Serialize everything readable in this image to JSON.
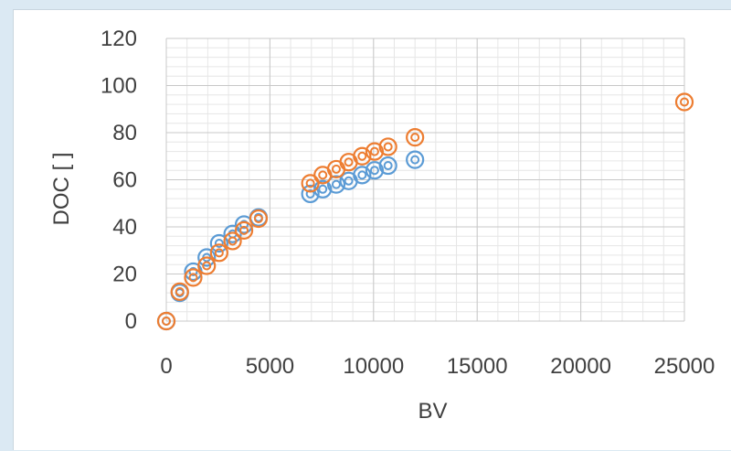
{
  "chart_data": {
    "type": "scatter",
    "xlabel": "BV",
    "ylabel": "DOC [ ]",
    "xlim": [
      0,
      25000
    ],
    "ylim": [
      0,
      120
    ],
    "x_ticks": [
      0,
      5000,
      10000,
      15000,
      20000,
      25000
    ],
    "y_ticks": [
      0,
      20,
      40,
      60,
      80,
      100,
      120
    ],
    "x_tick_labels": [
      "0",
      "5000",
      "10000",
      "15000",
      "20000",
      "25000"
    ],
    "y_tick_labels": [
      "0",
      "20",
      "40",
      "60",
      "80",
      "100",
      "120"
    ],
    "grid": true,
    "minor_grid": true,
    "legend": "none",
    "marker": "hollow-circle-with-center-dot",
    "series": [
      {
        "color": "#5b9bd5",
        "x": [
          0,
          650,
          1300,
          1950,
          2550,
          3200,
          3750,
          4450,
          6950,
          7550,
          8200,
          8800,
          9450,
          10050,
          10700,
          12000
        ],
        "y": [
          0,
          12,
          21,
          27,
          33,
          37,
          41,
          44,
          54,
          56,
          58,
          59.5,
          62,
          64,
          66,
          68.5
        ]
      },
      {
        "color": "#ed7d31",
        "x": [
          0,
          650,
          1300,
          1950,
          2550,
          3200,
          3750,
          4450,
          6950,
          7550,
          8200,
          8800,
          9450,
          10050,
          10700,
          12000,
          25000
        ],
        "y": [
          0,
          12.5,
          18.5,
          23.5,
          29,
          34,
          38.5,
          43.5,
          58.5,
          62,
          64.5,
          67.5,
          70,
          72,
          74,
          78,
          93
        ]
      }
    ]
  }
}
